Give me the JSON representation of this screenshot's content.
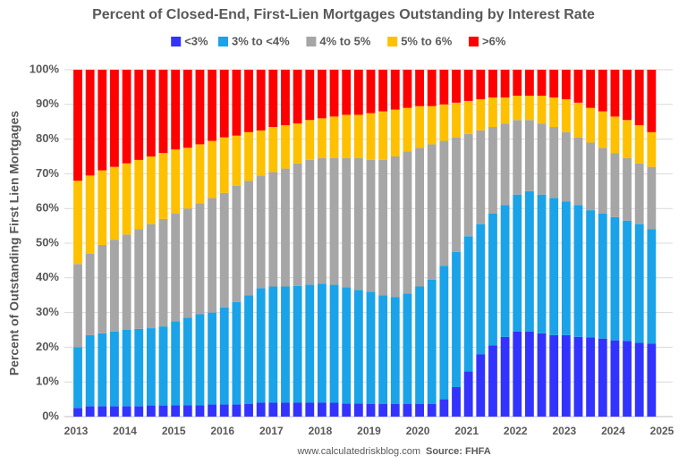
{
  "chart_data": {
    "type": "stacked_bar",
    "title": "Percent of Closed-End, First-Lien Mortgages Outstanding by Interest Rate",
    "y_label": "Percent of Outstanding First Lien Mortgages",
    "footer": "www.calculatedriskblog.com",
    "source": "Source: FHFA",
    "x": [
      2013,
      2013.25,
      2013.5,
      2013.75,
      2014,
      2014.25,
      2014.5,
      2014.75,
      2015,
      2015.25,
      2015.5,
      2015.75,
      2016,
      2016.25,
      2016.5,
      2016.75,
      2017,
      2017.25,
      2017.5,
      2017.75,
      2018,
      2018.25,
      2018.5,
      2018.75,
      2019,
      2019.25,
      2019.5,
      2019.75,
      2020,
      2020.25,
      2020.5,
      2020.75,
      2021,
      2021.25,
      2021.5,
      2021.75,
      2022,
      2022.25,
      2022.5,
      2022.75,
      2023,
      2023.25,
      2023.5,
      2023.75,
      2024,
      2024.25,
      2024.5,
      2024.75
    ],
    "xlim": [
      2013,
      2025
    ],
    "xticks": [
      2013,
      2014,
      2015,
      2016,
      2017,
      2018,
      2019,
      2020,
      2021,
      2022,
      2023,
      2024,
      2025
    ],
    "ylim": [
      0,
      100
    ],
    "yticks": [
      {
        "value": 0,
        "label": "0%"
      },
      {
        "value": 10,
        "label": "10%"
      },
      {
        "value": 20,
        "label": "20%"
      },
      {
        "value": 30,
        "label": "30%"
      },
      {
        "value": 40,
        "label": "40%"
      },
      {
        "value": 50,
        "label": "50%"
      },
      {
        "value": 60,
        "label": "60%"
      },
      {
        "value": 70,
        "label": "70%"
      },
      {
        "value": 80,
        "label": "80%"
      },
      {
        "value": 90,
        "label": "90%"
      },
      {
        "value": 100,
        "label": "100%"
      }
    ],
    "grid": true,
    "legend": "top",
    "series": [
      {
        "name": "<3%",
        "color": "#3333ff",
        "values": [
          2.5,
          3,
          3,
          3,
          3,
          3,
          3.2,
          3.2,
          3.3,
          3.3,
          3.3,
          3.5,
          3.5,
          3.5,
          3.7,
          4,
          4,
          4,
          4,
          4,
          4,
          4,
          3.8,
          3.8,
          3.7,
          3.7,
          3.7,
          3.7,
          3.7,
          3.7,
          5,
          8.5,
          13,
          18,
          20.5,
          23,
          24.5,
          24.5,
          24,
          23.5,
          23.5,
          23,
          22.8,
          22.5,
          22,
          21.8,
          21.3,
          21
        ]
      },
      {
        "name": "3% to <4%",
        "color": "#1aa3e8",
        "values": [
          17.5,
          20.5,
          21,
          21.5,
          22,
          22.3,
          22.3,
          22.8,
          24.2,
          25.2,
          26.2,
          26.5,
          28,
          29.5,
          31.3,
          33,
          33.5,
          33.5,
          33.7,
          34,
          34.3,
          34,
          33.5,
          32.7,
          32.3,
          31.3,
          30.8,
          31.8,
          33.8,
          35.8,
          38.5,
          39,
          39,
          37.5,
          38,
          38,
          39.5,
          40.5,
          40,
          39.5,
          38.5,
          38,
          36.7,
          36,
          35.5,
          34.7,
          34.2,
          33
        ]
      },
      {
        "name": "4% to 5%",
        "color": "#a6a6a6",
        "values": [
          24,
          23.5,
          25.5,
          26.5,
          27.5,
          28.7,
          30,
          31,
          31,
          31.5,
          32,
          33,
          33,
          33.5,
          33,
          32.5,
          33,
          34,
          35.3,
          36,
          36.2,
          36.5,
          37.2,
          38,
          38,
          39,
          40.5,
          41,
          40,
          39,
          36,
          33,
          29.5,
          27,
          25,
          23.5,
          21.5,
          20.5,
          20.5,
          20.5,
          20,
          19.5,
          19.5,
          19,
          18.5,
          18,
          17.5,
          18
        ]
      },
      {
        "name": "5% to 6%",
        "color": "#ffc000",
        "values": [
          24,
          22.5,
          21.5,
          21,
          20.5,
          20,
          19.5,
          19,
          18.5,
          17.5,
          17,
          16.5,
          16,
          14.5,
          14,
          13,
          13,
          12.5,
          11.5,
          11.5,
          11.5,
          12,
          12.5,
          12.5,
          13.5,
          14,
          13.5,
          12.5,
          12,
          11,
          10.5,
          10,
          9.5,
          9,
          8.5,
          7.5,
          7,
          7,
          8,
          8.5,
          9.5,
          10,
          10,
          10.5,
          10.5,
          11,
          11,
          10
        ]
      },
      {
        "name": ">6%",
        "color": "#ff0000",
        "values": [
          32,
          30.5,
          29,
          28,
          27,
          26,
          25,
          24,
          23,
          22.5,
          21.5,
          20.5,
          19.5,
          19,
          18,
          17.5,
          16.5,
          16,
          15.5,
          14.5,
          14,
          13.5,
          13,
          13,
          12.5,
          12,
          11.5,
          11,
          10.5,
          10.5,
          10,
          9.5,
          9,
          8.5,
          8,
          8,
          7.5,
          7.5,
          7.5,
          8,
          8.5,
          9.5,
          11,
          12,
          13.5,
          14.5,
          16,
          18
        ]
      }
    ]
  }
}
